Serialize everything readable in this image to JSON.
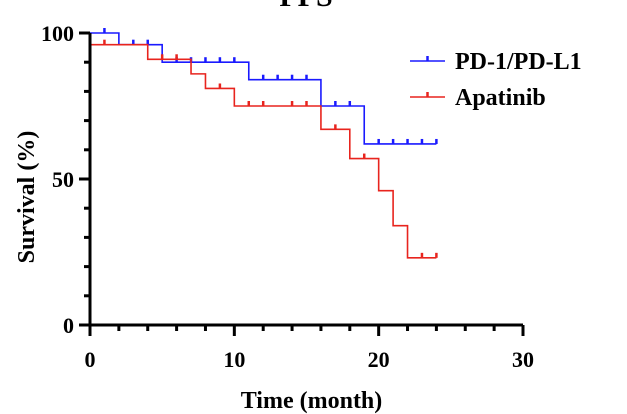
{
  "chart_data": {
    "type": "line",
    "subtype": "kaplan-meier",
    "title": "PFS",
    "xlabel": "Time (month)",
    "ylabel": "Survival (%)",
    "xlim": [
      0,
      30
    ],
    "ylim": [
      0,
      100
    ],
    "xticks": [
      0,
      10,
      20,
      30
    ],
    "yticks": [
      0,
      50,
      100
    ],
    "grid": false,
    "legend_position": "top-right",
    "series": [
      {
        "name": "PD-1/PD-L1",
        "color": "#1a1aff",
        "steps": [
          [
            0,
            100
          ],
          [
            2,
            100
          ],
          [
            2,
            96
          ],
          [
            5,
            96
          ],
          [
            5,
            90
          ],
          [
            11,
            90
          ],
          [
            11,
            84
          ],
          [
            16,
            84
          ],
          [
            16,
            75
          ],
          [
            19,
            75
          ],
          [
            19,
            62
          ],
          [
            24,
            62
          ]
        ],
        "censored": [
          [
            1,
            100
          ],
          [
            3,
            96
          ],
          [
            4,
            96
          ],
          [
            6,
            90
          ],
          [
            7,
            90
          ],
          [
            8,
            90
          ],
          [
            9,
            90
          ],
          [
            10,
            90
          ],
          [
            12,
            84
          ],
          [
            13,
            84
          ],
          [
            14,
            84
          ],
          [
            15,
            84
          ],
          [
            17,
            75
          ],
          [
            18,
            75
          ],
          [
            20,
            62
          ],
          [
            21,
            62
          ],
          [
            22,
            62
          ],
          [
            23,
            62
          ],
          [
            24,
            62
          ]
        ]
      },
      {
        "name": "Apatinib",
        "color": "#e8241e",
        "steps": [
          [
            0,
            96
          ],
          [
            4,
            96
          ],
          [
            4,
            91
          ],
          [
            7,
            91
          ],
          [
            7,
            86
          ],
          [
            8,
            86
          ],
          [
            8,
            81
          ],
          [
            10,
            81
          ],
          [
            10,
            75
          ],
          [
            16,
            75
          ],
          [
            16,
            67
          ],
          [
            18,
            67
          ],
          [
            18,
            57
          ],
          [
            20,
            57
          ],
          [
            20,
            46
          ],
          [
            21,
            46
          ],
          [
            21,
            34
          ],
          [
            22,
            34
          ],
          [
            22,
            23
          ],
          [
            24,
            23
          ]
        ],
        "censored": [
          [
            1,
            96
          ],
          [
            5,
            91
          ],
          [
            6,
            91
          ],
          [
            9,
            81
          ],
          [
            11,
            75
          ],
          [
            12,
            75
          ],
          [
            14,
            75
          ],
          [
            15,
            75
          ],
          [
            17,
            67
          ],
          [
            19,
            57
          ],
          [
            23,
            23
          ],
          [
            24,
            23
          ]
        ]
      }
    ]
  }
}
